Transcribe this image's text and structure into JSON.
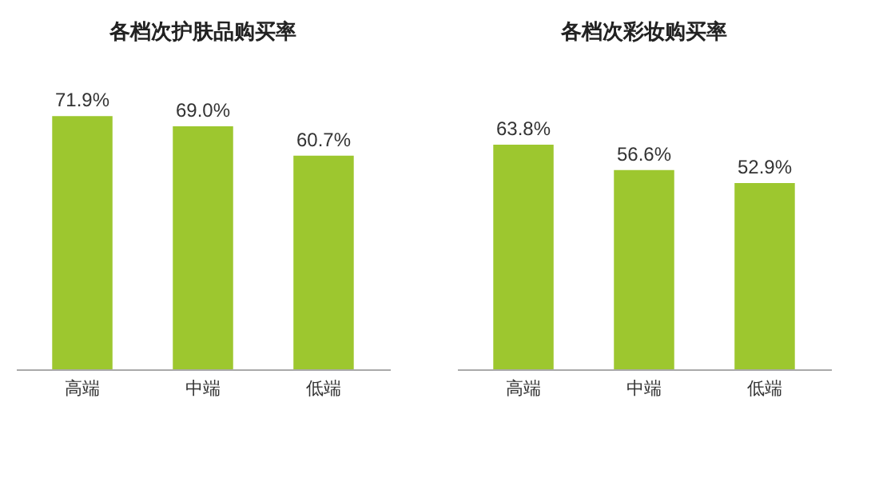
{
  "chart_data": [
    {
      "type": "bar",
      "title": "各档次护肤品购买率",
      "categories": [
        "高端",
        "中端",
        "低端"
      ],
      "values": [
        71.9,
        69.0,
        60.7
      ],
      "color": "#9dc72f",
      "value_labels": [
        "71.9%",
        "69.0%",
        "60.7%"
      ]
    },
    {
      "type": "bar",
      "title": "各档次彩妆购买率",
      "categories": [
        "高端",
        "中端",
        "低端"
      ],
      "values": [
        63.8,
        56.6,
        52.9
      ],
      "color": "#9dc72f",
      "value_labels": [
        "63.8%",
        "56.6%",
        "52.9%"
      ]
    }
  ]
}
